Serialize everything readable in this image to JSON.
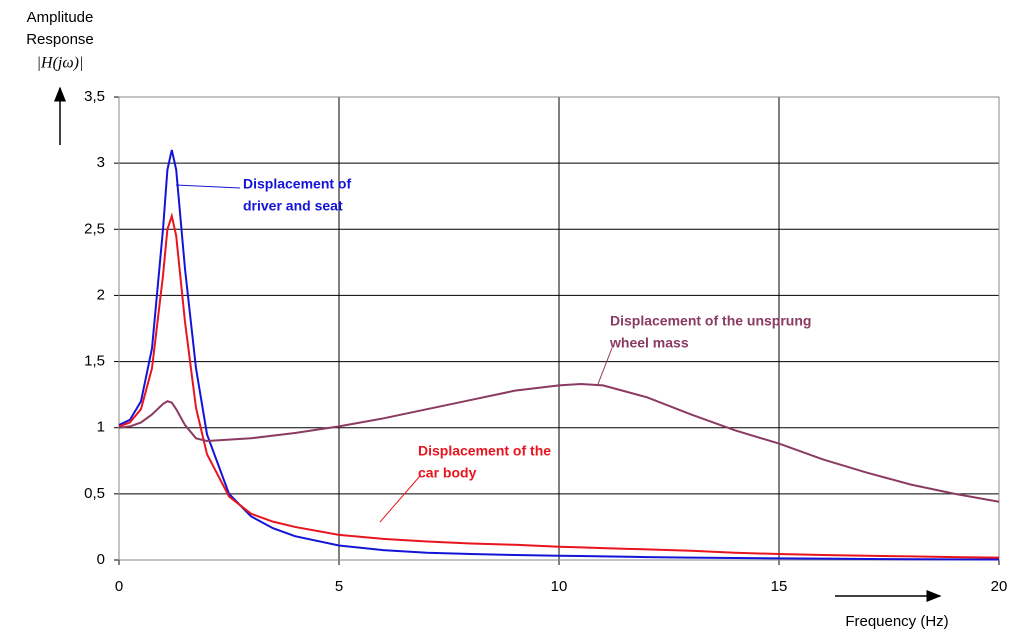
{
  "chart_data": {
    "type": "line",
    "y_label": [
      "Amplitude",
      "Response",
      "|H(jω)|"
    ],
    "x_label": "Frequency (Hz)",
    "x": [
      0,
      0.25,
      0.5,
      0.75,
      1,
      1.1,
      1.2,
      1.3,
      1.5,
      1.75,
      2,
      2.5,
      3,
      3.5,
      4,
      5,
      6,
      7,
      8,
      9,
      10,
      10.5,
      11,
      12,
      13,
      14,
      15,
      16,
      17,
      18,
      19,
      20
    ],
    "series": [
      {
        "color": "#1414d8",
        "values": [
          1.02,
          1.06,
          1.2,
          1.6,
          2.5,
          2.95,
          3.1,
          2.95,
          2.2,
          1.45,
          0.95,
          0.5,
          0.33,
          0.24,
          0.18,
          0.11,
          0.075,
          0.055,
          0.045,
          0.038,
          0.032,
          0.03,
          0.027,
          0.022,
          0.018,
          0.015,
          0.012,
          0.01,
          0.008,
          0.006,
          0.005,
          0.004
        ]
      },
      {
        "color": "#e8141e",
        "values": [
          1.01,
          1.04,
          1.14,
          1.45,
          2.15,
          2.5,
          2.6,
          2.45,
          1.8,
          1.15,
          0.8,
          0.48,
          0.35,
          0.29,
          0.25,
          0.19,
          0.16,
          0.14,
          0.125,
          0.115,
          0.1,
          0.095,
          0.09,
          0.08,
          0.07,
          0.055,
          0.045,
          0.038,
          0.032,
          0.027,
          0.022,
          0.018
        ]
      },
      {
        "color": "#8b3a62",
        "values": [
          1.0,
          1.01,
          1.04,
          1.1,
          1.18,
          1.2,
          1.19,
          1.14,
          1.02,
          0.92,
          0.9,
          0.91,
          0.92,
          0.94,
          0.96,
          1.01,
          1.07,
          1.14,
          1.21,
          1.28,
          1.32,
          1.33,
          1.32,
          1.23,
          1.1,
          0.98,
          0.88,
          0.76,
          0.66,
          0.57,
          0.5,
          0.44
        ]
      }
    ],
    "annotations": [
      [
        "Displacement of",
        "driver and seat"
      ],
      [
        "Displacement of the",
        "car body"
      ],
      [
        "Displacement of the unsprung",
        "wheel mass"
      ]
    ],
    "xlim": [
      0,
      20
    ],
    "xticks": [
      0,
      5,
      10,
      15,
      20
    ],
    "ylim": [
      0,
      3.5
    ],
    "yticks": [
      0,
      {
        "value": 0.5,
        "label": "0,5"
      },
      1,
      {
        "value": 1.5,
        "label": "1,5"
      },
      2,
      {
        "value": 2.5,
        "label": "2,5"
      },
      3,
      {
        "value": 3.5,
        "label": "3,5"
      }
    ],
    "grid": true
  }
}
